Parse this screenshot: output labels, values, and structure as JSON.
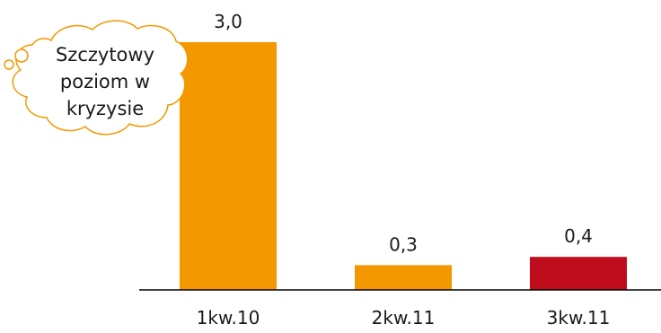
{
  "chart_data": {
    "type": "bar",
    "categories": [
      "1kw.10",
      "2kw.11",
      "3kw.11"
    ],
    "values": [
      3.0,
      0.3,
      0.4
    ],
    "value_labels": [
      "3,0",
      "0,3",
      "0,4"
    ],
    "bar_colors": [
      "#f39800",
      "#f39800",
      "#c00d1e"
    ],
    "ylim": [
      0,
      3.0
    ],
    "grid": false,
    "title": "",
    "xlabel": "",
    "ylabel": "",
    "annotation": {
      "lines": [
        "Szczytowy",
        "poziom w",
        "kryzysie"
      ],
      "shape": "cloud",
      "outline_color": "#f39800",
      "points_to": "1kw.10"
    }
  }
}
